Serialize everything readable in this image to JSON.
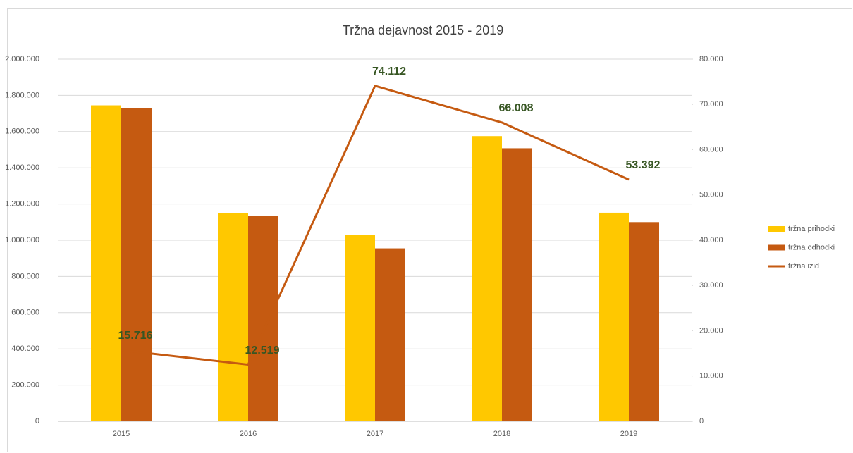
{
  "chart_data": {
    "type": "bar",
    "title": "Tržna dejavnost 2015 - 2019",
    "categories": [
      "2015",
      "2016",
      "2017",
      "2018",
      "2019"
    ],
    "series": [
      {
        "name": "tržna prihodki",
        "color": "#FFC800",
        "values": [
          1745000,
          1148000,
          1030000,
          1575000,
          1152000
        ]
      },
      {
        "name": "tržna odhodki",
        "color": "#C55A11",
        "values": [
          1730000,
          1135000,
          955000,
          1508000,
          1100000
        ]
      },
      {
        "name": "tržna izid",
        "color": "#C55A11",
        "type": "line",
        "axis": "y2",
        "values": [
          15716,
          12519,
          74112,
          66008,
          53392
        ],
        "value_labels": [
          "15.716",
          "12.519",
          "74.112",
          "66.008",
          "53.392"
        ],
        "label_color": "#375623"
      }
    ],
    "ylim": [
      0,
      2000000
    ],
    "yticks": [
      0,
      {
        "value": 200000,
        "label": "200.000"
      },
      {
        "value": 400000,
        "label": "400.000"
      },
      {
        "value": 600000,
        "label": "600.000"
      },
      {
        "value": 800000,
        "label": "800.000"
      },
      {
        "value": 1000000,
        "label": "1.000.000"
      },
      {
        "value": 1200000,
        "label": "1.200.000"
      },
      {
        "value": 1400000,
        "label": "1.400.000"
      },
      {
        "value": 1600000,
        "label": "1.600.000"
      },
      {
        "value": 1800000,
        "label": "1.800.000"
      },
      {
        "value": 2000000,
        "label": "2.000.000"
      }
    ],
    "y2lim": [
      0,
      80000
    ],
    "y2ticks": [
      0,
      {
        "value": 10000,
        "label": "10.000"
      },
      {
        "value": 20000,
        "label": "20.000"
      },
      {
        "value": 30000,
        "label": "30.000"
      },
      {
        "value": 40000,
        "label": "40.000"
      },
      {
        "value": 50000,
        "label": "50.000"
      },
      {
        "value": 60000,
        "label": "60.000"
      },
      {
        "value": 70000,
        "label": "70.000"
      },
      {
        "value": 80000,
        "label": "80.000"
      }
    ],
    "grid": true,
    "legend": "right"
  }
}
